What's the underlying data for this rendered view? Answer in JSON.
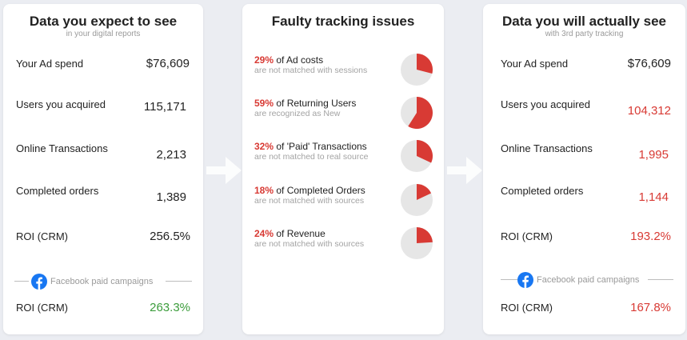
{
  "colors": {
    "accent_red": "#d83a34",
    "accent_green": "#3b9c3b",
    "pie_bg": "#e6e6e6",
    "facebook_blue": "#1877f2"
  },
  "left": {
    "title": "Data you expect to see",
    "subtitle": "in your digital reports",
    "rows": [
      {
        "label": "Your Ad spend",
        "value": "$76,609"
      },
      {
        "label": "Users you acquired",
        "value": "115,171"
      },
      {
        "label": "Online Transactions",
        "value": "2,213"
      },
      {
        "label": "Completed orders",
        "value": "1,389"
      },
      {
        "label": "ROI (CRM)",
        "value": "256.5%"
      }
    ],
    "divider_label": "Facebook paid campaigns",
    "fb_row": {
      "label": "ROI (CRM)",
      "value": "263.3%"
    }
  },
  "middle": {
    "title": "Faulty tracking issues",
    "issues": [
      {
        "percent_text": "29%",
        "percent": 29,
        "text": " of Ad costs",
        "subtext": "are not matched with sessions"
      },
      {
        "percent_text": "59%",
        "percent": 59,
        "text": " of Returning Users",
        "subtext": "are recognized as New"
      },
      {
        "percent_text": "32%",
        "percent": 32,
        "text": " of 'Paid' Transactions",
        "subtext": "are not matched to real source"
      },
      {
        "percent_text": "18%",
        "percent": 18,
        "text": " of Completed Orders",
        "subtext": "are not matched with sources"
      },
      {
        "percent_text": "24%",
        "percent": 24,
        "text": " of Revenue",
        "subtext": "are not matched with sources"
      }
    ]
  },
  "right": {
    "title": "Data you will actually see",
    "subtitle": "with 3rd party tracking",
    "rows": [
      {
        "label": "Your Ad spend",
        "value": "$76,609"
      },
      {
        "label": "Users you acquired",
        "value": "104,312"
      },
      {
        "label": "Online Transactions",
        "value": "1,995"
      },
      {
        "label": "Completed orders",
        "value": "1,144"
      },
      {
        "label": "ROI (CRM)",
        "value": "193.2%"
      }
    ],
    "divider_label": "Facebook paid campaigns",
    "fb_row": {
      "label": "ROI (CRM)",
      "value": "167.8%"
    }
  }
}
